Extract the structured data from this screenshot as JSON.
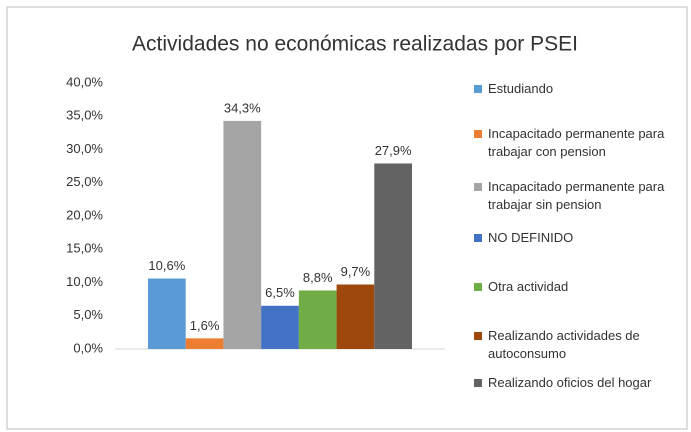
{
  "chart_data": {
    "type": "bar",
    "title": "Actividades no económicas realizadas por PSEI",
    "series": [
      {
        "name": "Estudiando",
        "color": "#5b9bd5",
        "values": [
          10.6
        ],
        "value_labels": [
          "10,6%"
        ]
      },
      {
        "name": "Incapacitado permanente para trabajar con pension",
        "color": "#ed7d31",
        "values": [
          1.6
        ],
        "value_labels": [
          "1,6%"
        ]
      },
      {
        "name": "Incapacitado permanente para trabajar sin pension",
        "color": "#a5a5a5",
        "values": [
          34.3
        ],
        "value_labels": [
          "34,3%"
        ]
      },
      {
        "name": "NO DEFINIDO",
        "color": "#4472c4",
        "values": [
          6.5
        ],
        "value_labels": [
          "6,5%"
        ]
      },
      {
        "name": "Otra actividad",
        "color": "#70ad47",
        "values": [
          8.8
        ],
        "value_labels": [
          "8,8%"
        ]
      },
      {
        "name": "Realizando actividades de autoconsumo",
        "color": "#9e480e",
        "values": [
          9.7
        ],
        "value_labels": [
          "9,7%"
        ]
      },
      {
        "name": "Realizando oficios del hogar",
        "color": "#636363",
        "values": [
          27.9
        ],
        "value_labels": [
          "27,9%"
        ]
      }
    ],
    "ylim": [
      0,
      40
    ],
    "yticks": [
      {
        "value": 0,
        "label": "0,0%"
      },
      {
        "value": 5,
        "label": "5,0%"
      },
      {
        "value": 10,
        "label": "10,0%"
      },
      {
        "value": 15,
        "label": "15,0%"
      },
      {
        "value": 20,
        "label": "20,0%"
      },
      {
        "value": 25,
        "label": "25,0%"
      },
      {
        "value": 30,
        "label": "30,0%"
      },
      {
        "value": 35,
        "label": "35,0%"
      },
      {
        "value": 40,
        "label": "40,0%"
      }
    ],
    "legend": "right"
  }
}
